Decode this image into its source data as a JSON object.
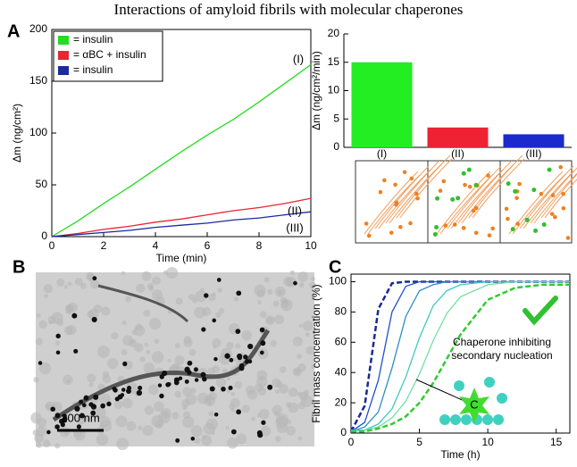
{
  "title": "Interactions of amyloid fibrils with molecular chaperones",
  "chart_data": [
    {
      "type": "line",
      "panel": "A",
      "xlabel": "Time (min)",
      "ylabel": "Δm (ng/cm²)",
      "x": [
        0,
        1,
        2,
        3,
        4,
        5,
        6,
        7,
        8,
        9,
        10
      ],
      "xlim": [
        0,
        10
      ],
      "xticks": [
        0,
        2,
        4,
        6,
        8,
        10
      ],
      "ylim": [
        0,
        200
      ],
      "yticks": [
        0,
        50,
        100,
        150,
        200
      ],
      "legend": "upper left",
      "annotations": [
        "(I)",
        "(II)",
        "(III)"
      ],
      "series": [
        {
          "name": "= insulin",
          "color": "#22dd22",
          "values": [
            0,
            15,
            32,
            48,
            65,
            82,
            98,
            113,
            130,
            148,
            166
          ]
        },
        {
          "name": "= αBC + insulin",
          "color": "#ee2233",
          "values": [
            0,
            3,
            7,
            10,
            14,
            17,
            21,
            25,
            28,
            32,
            37
          ]
        },
        {
          "name": "= insulin",
          "color": "#1a2aa0",
          "values": [
            0,
            2,
            4,
            6,
            9,
            11,
            13,
            16,
            18,
            21,
            24
          ]
        }
      ]
    },
    {
      "type": "bar",
      "ylabel": "Δm (ng/cm²/min)",
      "categories": [
        "(I)",
        "(II)",
        "(III)"
      ],
      "values": [
        15,
        3.5,
        2.3
      ],
      "colors": [
        "#22ee22",
        "#ee2233",
        "#1a2acc"
      ],
      "ylim": [
        0,
        20
      ],
      "yticks": [
        0,
        5,
        10,
        15,
        20
      ]
    },
    {
      "type": "line",
      "panel": "C",
      "xlabel": "Time (h)",
      "ylabel": "Fibril mass concentration (%)",
      "x": [
        0,
        1,
        2,
        3,
        4,
        5,
        6,
        7,
        8,
        10,
        12,
        14,
        16
      ],
      "xlim": [
        0,
        16
      ],
      "xticks": [
        0,
        5,
        10,
        15
      ],
      "ylim": [
        0,
        105
      ],
      "yticks": [
        0,
        20,
        40,
        60,
        80,
        100
      ],
      "annotations": [
        "Chaperone inhibiting",
        "secondary nucleation",
        "C"
      ],
      "series": [
        {
          "color": "#1a2a90",
          "dash": true,
          "values": [
            1,
            18,
            82,
            99,
            100,
            100,
            100,
            100,
            100,
            100,
            100,
            100,
            100
          ]
        },
        {
          "color": "#2050d0",
          "values": [
            1,
            7,
            35,
            80,
            97,
            100,
            100,
            100,
            100,
            100,
            100,
            100,
            100
          ]
        },
        {
          "color": "#2a8fc8",
          "values": [
            1,
            4,
            14,
            43,
            77,
            94,
            98,
            100,
            100,
            100,
            100,
            100,
            100
          ]
        },
        {
          "color": "#40c8c0",
          "values": [
            2,
            2,
            6,
            16,
            37,
            63,
            84,
            94,
            98,
            100,
            100,
            100,
            100
          ]
        },
        {
          "color": "#70e0a0",
          "values": [
            1,
            2,
            4,
            10,
            21,
            39,
            61,
            79,
            90,
            98,
            100,
            100,
            100
          ]
        },
        {
          "color": "#30cc30",
          "dash": true,
          "values": [
            1,
            1,
            3,
            6,
            11,
            20,
            33,
            49,
            65,
            88,
            96,
            98,
            98
          ]
        }
      ]
    }
  ],
  "micrograph": {
    "panel": "B",
    "scale_label": "200 nm"
  }
}
